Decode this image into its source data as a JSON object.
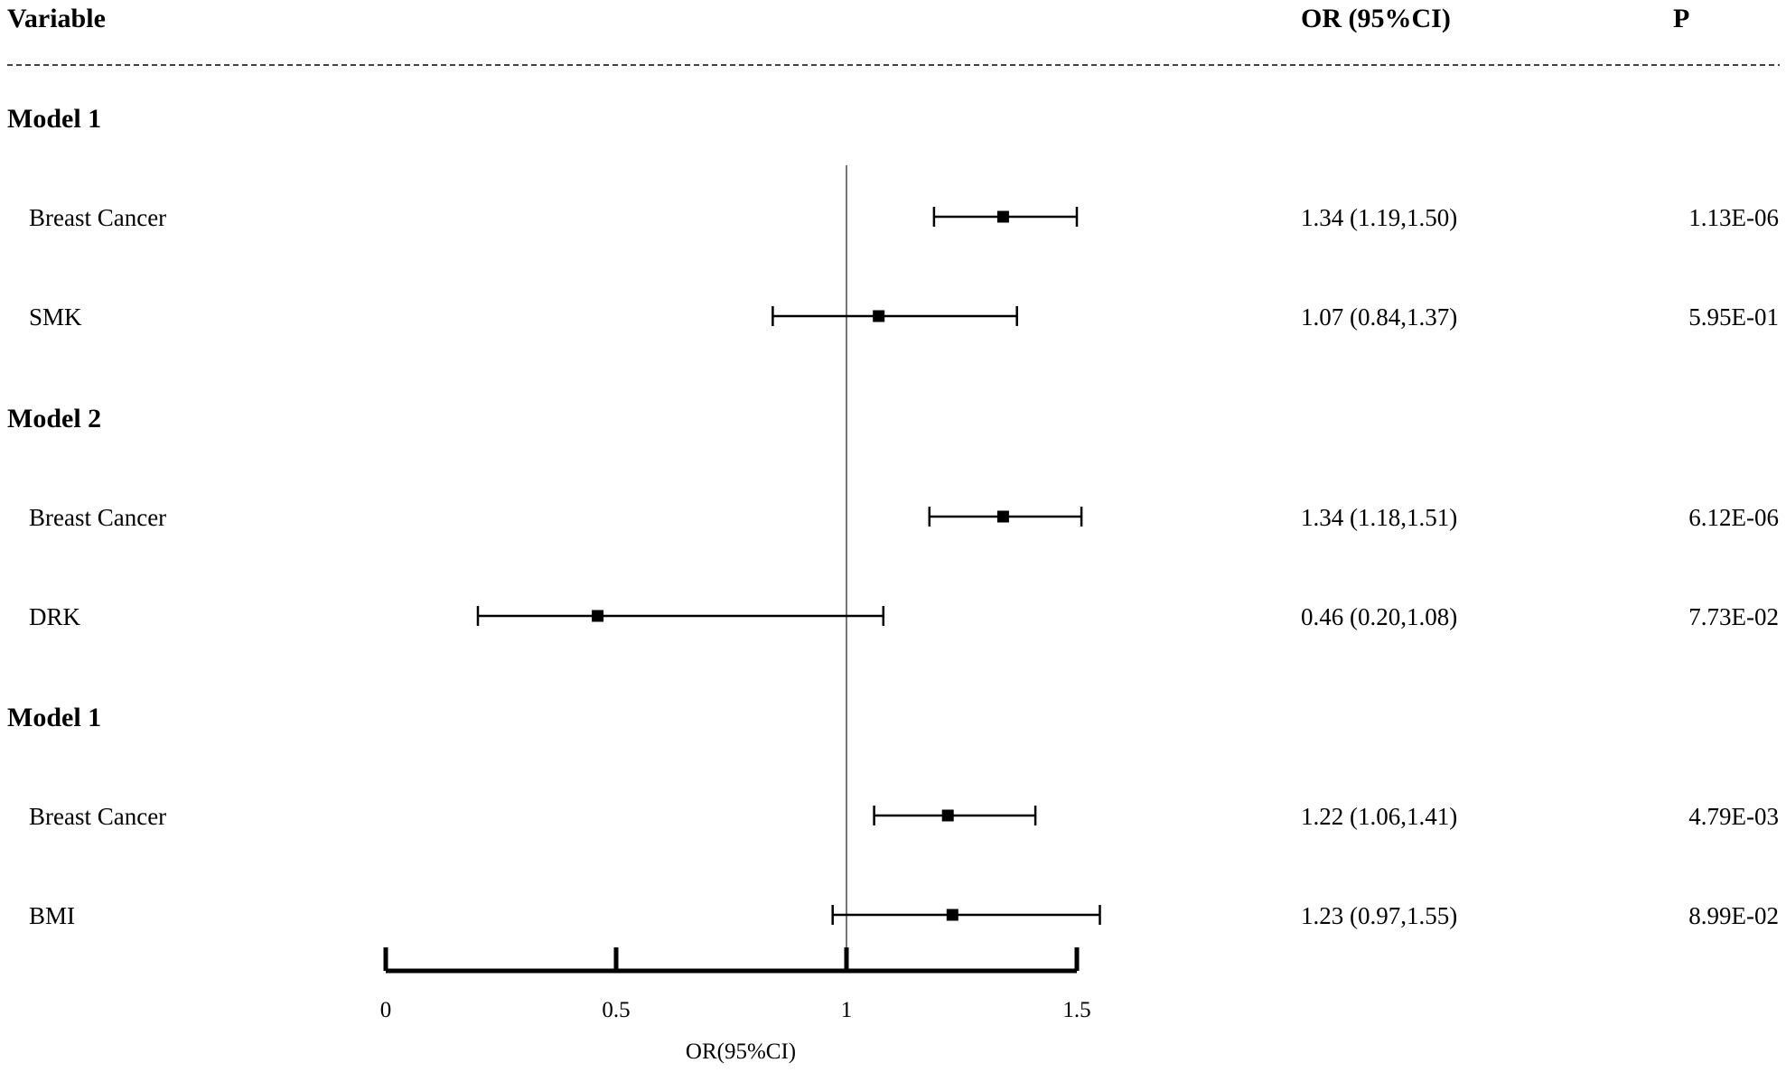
{
  "header": {
    "variable": "Variable",
    "or_ci": "OR (95%CI)",
    "p": "P"
  },
  "chart_data": {
    "type": "forest",
    "reference_line": 1,
    "xlim": [
      0,
      1.5
    ],
    "xticks": [
      "0",
      "0.5",
      "1",
      "1.5"
    ],
    "xlabel": "OR(95%CI)",
    "groups": [
      {
        "name": "Model 1",
        "rows": [
          {
            "label": "Breast Cancer",
            "or": 1.34,
            "lo": 1.19,
            "hi": 1.5,
            "text": "1.34 (1.19,1.50)",
            "p": "1.13E-06"
          },
          {
            "label": "SMK",
            "or": 1.07,
            "lo": 0.84,
            "hi": 1.37,
            "text": "1.07 (0.84,1.37)",
            "p": "5.95E-01"
          }
        ]
      },
      {
        "name": "Model 2",
        "rows": [
          {
            "label": "Breast Cancer",
            "or": 1.34,
            "lo": 1.18,
            "hi": 1.51,
            "text": "1.34 (1.18,1.51)",
            "p": "6.12E-06"
          },
          {
            "label": "DRK",
            "or": 0.46,
            "lo": 0.2,
            "hi": 1.08,
            "text": "0.46 (0.20,1.08)",
            "p": "7.73E-02"
          }
        ]
      },
      {
        "name": "Model 1",
        "rows": [
          {
            "label": "Breast Cancer",
            "or": 1.22,
            "lo": 1.06,
            "hi": 1.41,
            "text": "1.22 (1.06,1.41)",
            "p": "4.79E-03"
          },
          {
            "label": "BMI",
            "or": 1.23,
            "lo": 0.97,
            "hi": 1.55,
            "text": "1.23 (0.97,1.55)",
            "p": "8.99E-02"
          }
        ]
      }
    ]
  }
}
